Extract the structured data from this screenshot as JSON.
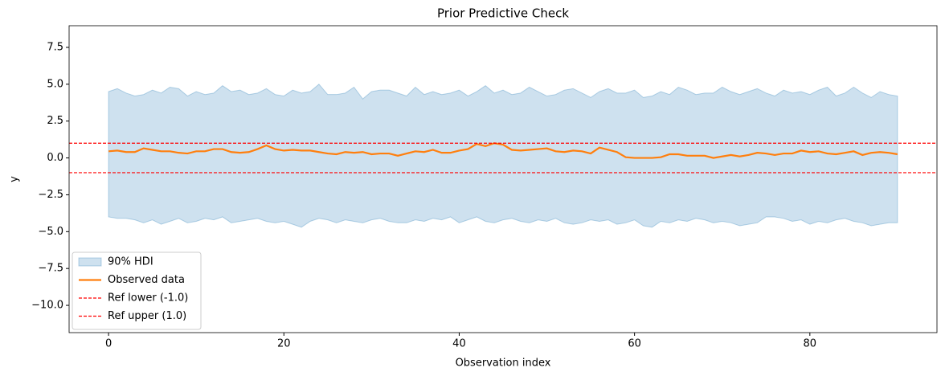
{
  "chart_data": {
    "type": "line",
    "title": "Prior Predictive Check",
    "xlabel": "Observation index",
    "ylabel": "y",
    "x": [
      0,
      1,
      2,
      3,
      4,
      5,
      6,
      7,
      8,
      9,
      10,
      11,
      12,
      13,
      14,
      15,
      16,
      17,
      18,
      19,
      20,
      21,
      22,
      23,
      24,
      25,
      26,
      27,
      28,
      29,
      30,
      31,
      32,
      33,
      34,
      35,
      36,
      37,
      38,
      39,
      40,
      41,
      42,
      43,
      44,
      45,
      46,
      47,
      48,
      49,
      50,
      51,
      52,
      53,
      54,
      55,
      56,
      57,
      58,
      59,
      60,
      61,
      62,
      63,
      64,
      65,
      66,
      67,
      68,
      69,
      70,
      71,
      72,
      73,
      74,
      75,
      76,
      77,
      78,
      79,
      80,
      81,
      82,
      83,
      84,
      85,
      86,
      87,
      88,
      89,
      90
    ],
    "xlim": [
      -4.5,
      94.5
    ],
    "ylim": [
      -11.85,
      8.97
    ],
    "xticks": [
      0,
      20,
      40,
      60,
      80
    ],
    "yticks": [
      7.5,
      {
        "value": 5,
        "label": "5.0"
      },
      2.5,
      {
        "value": 0,
        "label": "0.0"
      },
      {
        "value": -2.5,
        "label": "−2.5"
      },
      {
        "value": -5,
        "label": "−5.0"
      },
      {
        "value": -7.5,
        "label": "−7.5"
      },
      {
        "value": -10,
        "label": "−10.0"
      }
    ],
    "legend": "lower left",
    "band": {
      "name": "90% HDI",
      "color": "#1f77b4",
      "upper": [
        4.5,
        4.7,
        4.4,
        4.2,
        4.3,
        4.6,
        4.4,
        4.8,
        4.7,
        4.2,
        4.5,
        4.3,
        4.4,
        4.9,
        4.5,
        4.6,
        4.3,
        4.4,
        4.7,
        4.3,
        4.2,
        4.6,
        4.4,
        4.5,
        5.0,
        4.3,
        4.3,
        4.4,
        4.8,
        4.0,
        4.5,
        4.6,
        4.6,
        4.4,
        4.2,
        4.8,
        4.3,
        4.5,
        4.3,
        4.4,
        4.6,
        4.2,
        4.5,
        4.9,
        4.4,
        4.6,
        4.3,
        4.4,
        4.8,
        4.5,
        4.2,
        4.3,
        4.6,
        4.7,
        4.4,
        4.1,
        4.5,
        4.7,
        4.4,
        4.4,
        4.6,
        4.1,
        4.2,
        4.5,
        4.3,
        4.8,
        4.6,
        4.3,
        4.4,
        4.4,
        4.8,
        4.5,
        4.3,
        4.5,
        4.7,
        4.4,
        4.2,
        4.6,
        4.4,
        4.5,
        4.3,
        4.6,
        4.8,
        4.2,
        4.4,
        4.8,
        4.4,
        4.1,
        4.5,
        4.3,
        4.2
      ],
      "lower": [
        -4.0,
        -4.1,
        -4.1,
        -4.2,
        -4.4,
        -4.2,
        -4.5,
        -4.3,
        -4.1,
        -4.4,
        -4.3,
        -4.1,
        -4.2,
        -4.0,
        -4.4,
        -4.3,
        -4.2,
        -4.1,
        -4.3,
        -4.4,
        -4.3,
        -4.5,
        -4.7,
        -4.3,
        -4.1,
        -4.2,
        -4.4,
        -4.2,
        -4.3,
        -4.4,
        -4.2,
        -4.1,
        -4.3,
        -4.4,
        -4.4,
        -4.2,
        -4.3,
        -4.1,
        -4.2,
        -4.0,
        -4.4,
        -4.2,
        -4.0,
        -4.3,
        -4.4,
        -4.2,
        -4.1,
        -4.3,
        -4.4,
        -4.2,
        -4.3,
        -4.1,
        -4.4,
        -4.5,
        -4.4,
        -4.2,
        -4.3,
        -4.2,
        -4.5,
        -4.4,
        -4.2,
        -4.6,
        -4.7,
        -4.3,
        -4.4,
        -4.2,
        -4.3,
        -4.1,
        -4.2,
        -4.4,
        -4.3,
        -4.4,
        -4.6,
        -4.5,
        -4.4,
        -4.0,
        -4.0,
        -4.1,
        -4.3,
        -4.2,
        -4.5,
        -4.3,
        -4.4,
        -4.2,
        -4.1,
        -4.3,
        -4.4,
        -4.6,
        -4.5,
        -4.4,
        -4.4
      ]
    },
    "series": [
      {
        "name": "Observed data",
        "color": "#ff7f0e",
        "values": [
          0.45,
          0.5,
          0.4,
          0.4,
          0.65,
          0.55,
          0.45,
          0.45,
          0.35,
          0.3,
          0.45,
          0.45,
          0.6,
          0.6,
          0.4,
          0.35,
          0.4,
          0.6,
          0.85,
          0.6,
          0.5,
          0.55,
          0.5,
          0.5,
          0.4,
          0.3,
          0.25,
          0.4,
          0.35,
          0.4,
          0.25,
          0.3,
          0.3,
          0.15,
          0.3,
          0.45,
          0.4,
          0.55,
          0.35,
          0.35,
          0.5,
          0.6,
          0.95,
          0.8,
          1.0,
          0.9,
          0.55,
          0.5,
          0.55,
          0.6,
          0.65,
          0.45,
          0.4,
          0.5,
          0.45,
          0.3,
          0.7,
          0.55,
          0.4,
          0.05,
          0.0,
          0.0,
          0.0,
          0.05,
          0.25,
          0.25,
          0.15,
          0.15,
          0.15,
          0.0,
          0.1,
          0.2,
          0.1,
          0.2,
          0.35,
          0.3,
          0.2,
          0.3,
          0.3,
          0.5,
          0.4,
          0.45,
          0.3,
          0.25,
          0.35,
          0.45,
          0.2,
          0.35,
          0.4,
          0.35,
          0.25
        ]
      }
    ],
    "hlines": [
      {
        "name": "Ref lower (-1.0)",
        "value": -1.0,
        "color": "#ff0000"
      },
      {
        "name": "Ref upper (1.0)",
        "value": 1.0,
        "color": "#ff0000"
      }
    ]
  }
}
